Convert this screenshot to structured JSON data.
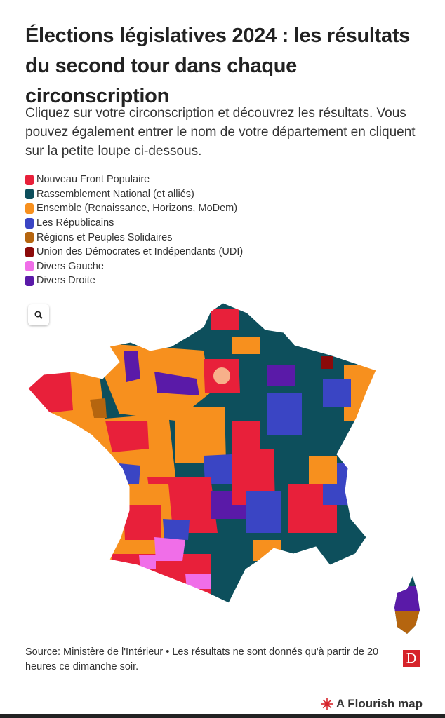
{
  "header": {
    "title": "Élections législatives 2024 : les résultats du second tour dans chaque circonscription",
    "subtitle": "Cliquez sur votre circonscription et découvrez les résultats. Vous pouvez également entrer le nom de votre département en cliquent sur la petite loupe ci-dessous."
  },
  "legend": [
    {
      "label": "Nouveau Front Populaire",
      "color": "#e8203a"
    },
    {
      "label": "Rassemblement National (et alliés)",
      "color": "#0d4f5c"
    },
    {
      "label": "Ensemble (Renaissance, Horizons, MoDem)",
      "color": "#f7901e"
    },
    {
      "label": "Les Républicains",
      "color": "#3a45c4"
    },
    {
      "label": "Régions et Peuples Solidaires",
      "color": "#b5650f"
    },
    {
      "label": "Union des Démocrates et Indépendants (UDI)",
      "color": "#8b0a0a"
    },
    {
      "label": "Divers Gauche",
      "color": "#f06ee8"
    },
    {
      "label": "Divers Droite",
      "color": "#5a1aa8"
    }
  ],
  "map": {
    "search_icon": "search-icon"
  },
  "footer": {
    "source_prefix": "Source: ",
    "source_link": "Ministère de l'Intérieur",
    "source_text": " • Les résultats ne sont donnés qu'à partir de 20 heures ce dimanche soir.",
    "logo_letter": "D",
    "flourish_label": "A Flourish map"
  }
}
